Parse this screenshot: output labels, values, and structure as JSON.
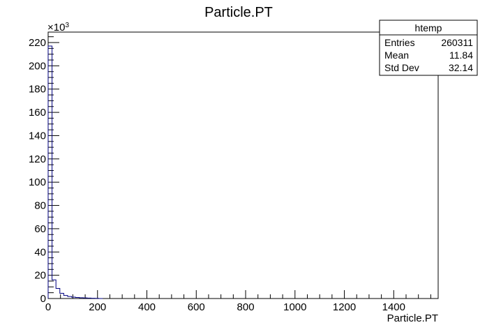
{
  "chart_data": {
    "type": "bar",
    "title": "Particle.PT",
    "xlabel": "Particle.PT",
    "ylabel": "",
    "xlim": [
      0,
      1580
    ],
    "ylim": [
      0,
      229000
    ],
    "y_multiplier_label": "×10",
    "y_multiplier_exp": "3",
    "x_ticks": [
      0,
      200,
      400,
      600,
      800,
      1000,
      1200,
      1400
    ],
    "y_ticks": [
      0,
      20,
      40,
      60,
      80,
      100,
      120,
      140,
      160,
      180,
      200,
      220
    ],
    "bin_width": 15.8,
    "bins_x": [
      0,
      15.8,
      31.6,
      47.4,
      63.2,
      79,
      94.8,
      110.6,
      126.4,
      142.2,
      158,
      173.8,
      189.6,
      205.4
    ],
    "bins_y": [
      217000,
      16000,
      8700,
      4500,
      2600,
      1700,
      1200,
      900,
      700,
      500,
      350,
      250,
      150,
      0
    ],
    "line_color": "#000080",
    "grid": false,
    "stats_box": {
      "title": "htemp",
      "position": "top-right",
      "rows": [
        {
          "label": "Entries",
          "value": "260311"
        },
        {
          "label": "Mean",
          "value": "11.84"
        },
        {
          "label": "Std Dev",
          "value": "32.14"
        }
      ]
    }
  }
}
